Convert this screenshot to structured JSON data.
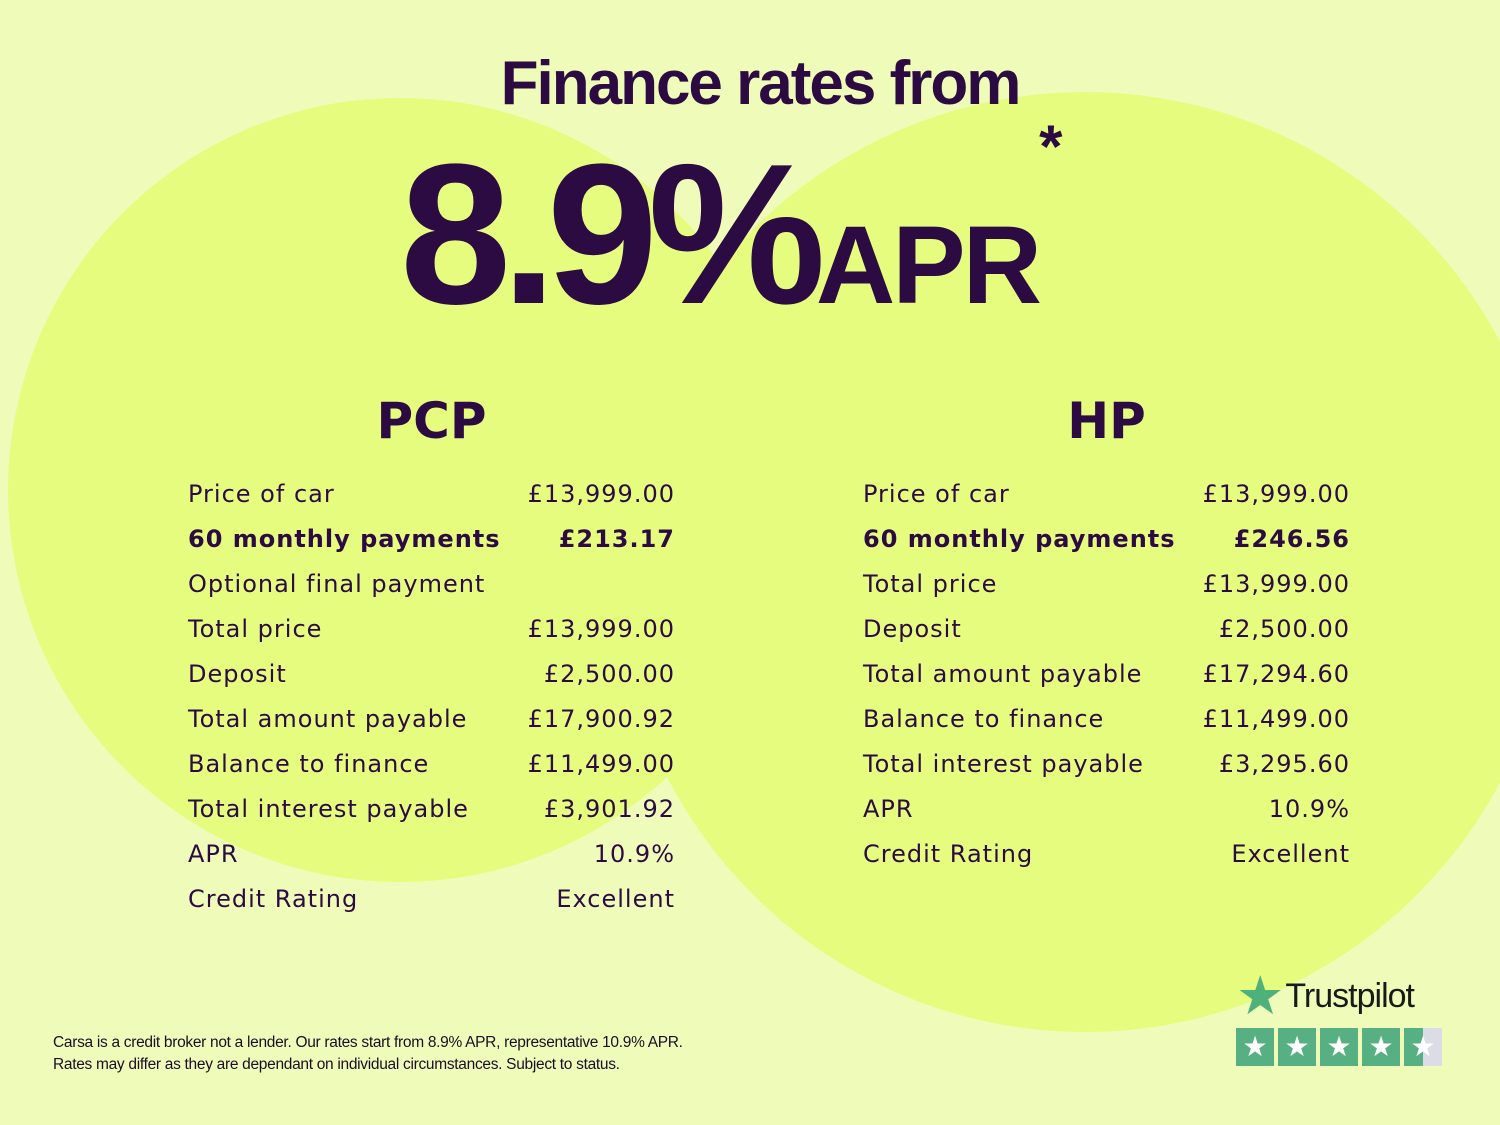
{
  "headline": {
    "title": "Finance rates from",
    "rate": "8.9%",
    "apr": "APR",
    "asterisk": "*"
  },
  "pcp": {
    "heading": "PCP",
    "rows": [
      {
        "label": "Price of car",
        "value": "£13,999.00"
      },
      {
        "label": "60 monthly payments",
        "value": "£213.17",
        "bold": true
      },
      {
        "label": "Optional final payment",
        "value": ""
      },
      {
        "label": "Total price",
        "value": "£13,999.00"
      },
      {
        "label": "Deposit",
        "value": "£2,500.00"
      },
      {
        "label": "Total amount payable",
        "value": "£17,900.92"
      },
      {
        "label": "Balance to finance",
        "value": "£11,499.00"
      },
      {
        "label": "Total interest payable",
        "value": "£3,901.92"
      },
      {
        "label": "APR",
        "value": "10.9%"
      },
      {
        "label": "Credit Rating",
        "value": "Excellent"
      }
    ]
  },
  "hp": {
    "heading": "HP",
    "rows": [
      {
        "label": "Price of car",
        "value": "£13,999.00"
      },
      {
        "label": "60 monthly payments",
        "value": "£246.56",
        "bold": true
      },
      {
        "label": "Total price",
        "value": "£13,999.00"
      },
      {
        "label": "Deposit",
        "value": "£2,500.00"
      },
      {
        "label": "Total amount payable",
        "value": "£17,294.60"
      },
      {
        "label": "Balance to finance",
        "value": "£11,499.00"
      },
      {
        "label": "Total interest payable",
        "value": "£3,295.60"
      },
      {
        "label": "APR",
        "value": "10.9%"
      },
      {
        "label": "Credit Rating",
        "value": "Excellent"
      }
    ]
  },
  "disclaimer": {
    "line1": "Carsa is a credit broker not a lender. Our rates start from 8.9% APR, representative 10.9% APR.",
    "line2": "Rates may differ as they are dependant on individual circumstances. Subject to status."
  },
  "trustpilot": {
    "name": "Trustpilot",
    "rating_stars": 4.5,
    "max_stars": 5,
    "icon": "star-icon"
  },
  "colors": {
    "text": "#2c0b43",
    "background": "#effcb9",
    "circle": "#e5fc7f",
    "trustpilot_green": "#56b082"
  }
}
